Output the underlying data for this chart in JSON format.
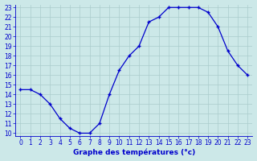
{
  "hours": [
    0,
    1,
    2,
    3,
    4,
    5,
    6,
    7,
    8,
    9,
    10,
    11,
    12,
    13,
    14,
    15,
    16,
    17,
    18,
    19,
    20,
    21,
    22,
    23
  ],
  "temps": [
    14.5,
    14.5,
    14.0,
    13.0,
    11.5,
    10.5,
    10.0,
    10.0,
    11.0,
    14.0,
    16.5,
    18.0,
    19.0,
    21.5,
    22.0,
    23.0,
    23.0,
    23.0,
    23.0,
    22.5,
    21.0,
    18.5,
    17.0,
    16.0
  ],
  "line_color": "#0000cc",
  "marker": "+",
  "bg_color": "#cce8e8",
  "grid_color": "#aacccc",
  "xlabel": "Graphe des températures (°c)",
  "xlabel_color": "#0000cc",
  "ylim": [
    10,
    23
  ],
  "xlim": [
    -0.5,
    23.5
  ],
  "yticks": [
    10,
    11,
    12,
    13,
    14,
    15,
    16,
    17,
    18,
    19,
    20,
    21,
    22,
    23
  ],
  "xticks": [
    0,
    1,
    2,
    3,
    4,
    5,
    6,
    7,
    8,
    9,
    10,
    11,
    12,
    13,
    14,
    15,
    16,
    17,
    18,
    19,
    20,
    21,
    22,
    23
  ],
  "xtick_labels": [
    "0",
    "1",
    "2",
    "3",
    "4",
    "5",
    "6",
    "7",
    "8",
    "9",
    "10",
    "11",
    "12",
    "13",
    "14",
    "15",
    "16",
    "17",
    "18",
    "19",
    "20",
    "21",
    "22",
    "23"
  ],
  "tick_fontsize": 5.5,
  "label_fontsize": 6.5
}
